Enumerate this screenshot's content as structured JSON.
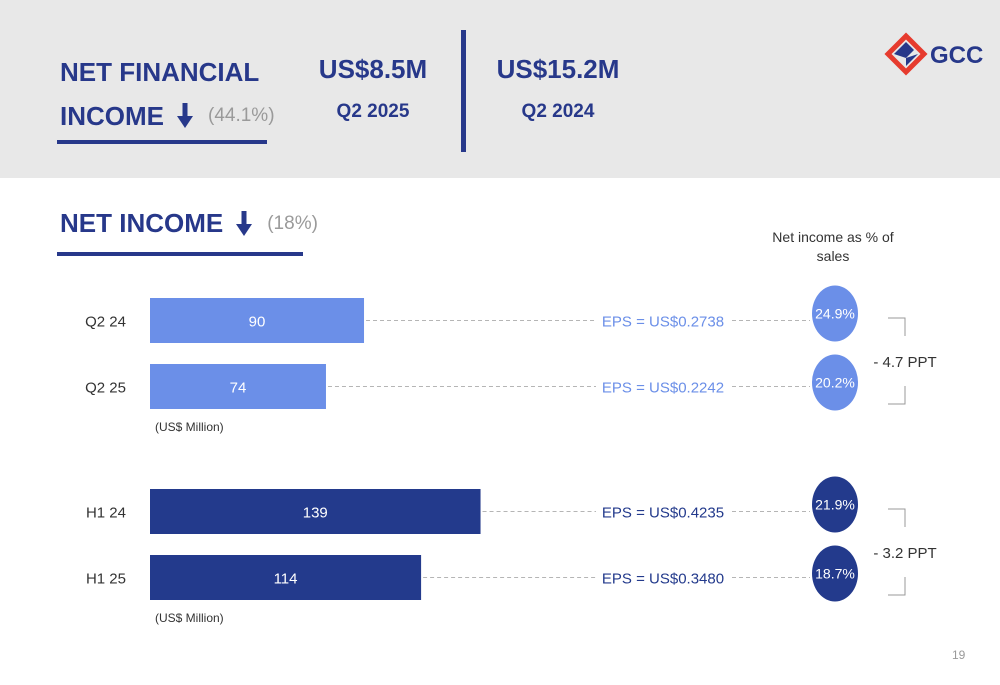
{
  "header": {
    "title_line1": "NET FINANCIAL",
    "title_line2": "INCOME",
    "change": "(44.1%)",
    "kpis": [
      {
        "value": "US$8.5M",
        "label": "Q2 2025"
      },
      {
        "value": "US$15.2M",
        "label": "Q2 2024"
      }
    ],
    "logo_text": "GCC",
    "logo_icon": "gcc-logo-icon"
  },
  "section": {
    "title": "NET INCOME",
    "change": "(18%)",
    "note": "Net income as % of sales"
  },
  "chart_data": {
    "type": "bar",
    "orientation": "horizontal",
    "title": "NET INCOME",
    "unit_label": "(US$ Million)",
    "groups": [
      {
        "categories": [
          "Q2 24",
          "Q2 25"
        ],
        "values": [
          90,
          74
        ],
        "eps": [
          "EPS = US$0.2738",
          "EPS = US$0.2242"
        ],
        "pct_of_sales": [
          "24.9%",
          "20.2%"
        ],
        "change": "- 4.7 PPT",
        "color": "#6b8fe8",
        "eps_color": "#6b8fe8"
      },
      {
        "categories": [
          "H1 24",
          "H1 25"
        ],
        "values": [
          139,
          114
        ],
        "eps": [
          "EPS = US$0.4235",
          "EPS = US$0.3480"
        ],
        "pct_of_sales": [
          "21.9%",
          "18.7%"
        ],
        "change": "- 3.2 PPT",
        "color": "#233a8c",
        "eps_color": "#233a8c"
      }
    ]
  },
  "colors": {
    "brand": "#27388a",
    "accent": "#e63b2e",
    "muted": "#9a9a9a"
  },
  "page_number": "19"
}
